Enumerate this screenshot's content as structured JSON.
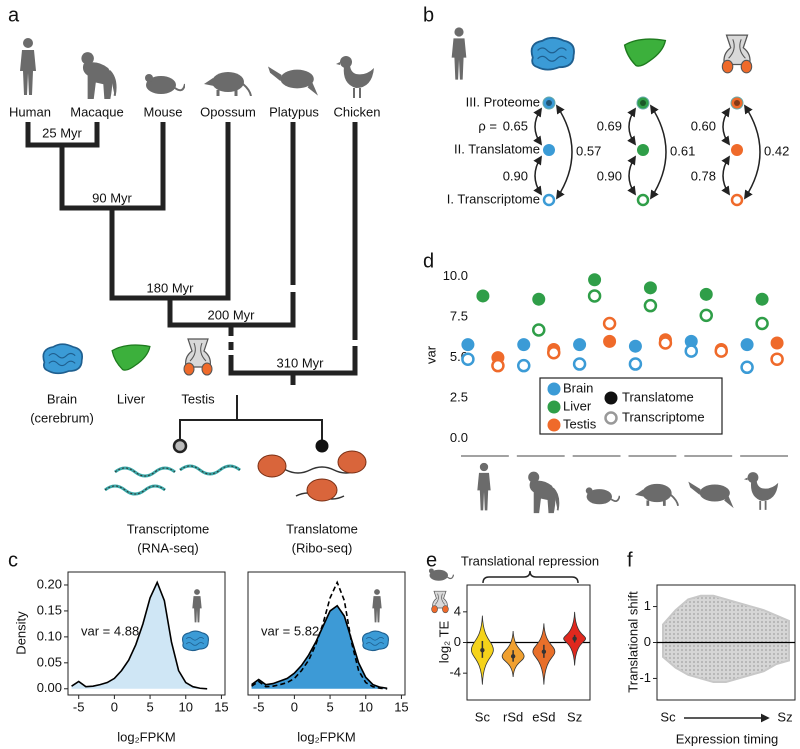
{
  "panel_labels": [
    "a",
    "b",
    "c",
    "d",
    "e",
    "f"
  ],
  "tree": {
    "species": [
      "Human",
      "Macaque",
      "Mouse",
      "Opossum",
      "Platypus",
      "Chicken"
    ],
    "divergences": [
      "25 Myr",
      "90 Myr",
      "180 Myr",
      "200 Myr",
      "310 Myr"
    ],
    "tissues": [
      {
        "name": "Brain",
        "note": "(cerebrum)"
      },
      {
        "name": "Liver"
      },
      {
        "name": "Testis"
      }
    ],
    "methods": [
      {
        "name": "Transcriptome",
        "assay": "(RNA-seq)"
      },
      {
        "name": "Translatome",
        "assay": "(Ribo-seq)"
      }
    ]
  },
  "correlations": {
    "levels": [
      "III. Proteome",
      "II. Translatome",
      "I. Transcriptome"
    ],
    "rho_prefix": "ρ =",
    "tissues": [
      {
        "color": "#3b9bd6",
        "proteome_translatome": "0.65",
        "translatome_transcriptome": "0.90",
        "proteome_transcriptome": "0.57"
      },
      {
        "color": "#2f9e48",
        "proteome_translatome": "0.69",
        "translatome_transcriptome": "0.90",
        "proteome_transcriptome": "0.61"
      },
      {
        "color": "#ef6a2a",
        "proteome_translatome": "0.60",
        "translatome_transcriptome": "0.78",
        "proteome_transcriptome": "0.42"
      }
    ]
  },
  "chart_data": [
    {
      "type": "dot",
      "ylabel": "var",
      "categories": [
        null,
        null,
        null,
        null,
        null,
        null
      ],
      "ylim": [
        -0.7,
        10.4
      ],
      "yticks": [
        {
          "value": 0,
          "label": "0.0"
        },
        2.5,
        {
          "value": 5,
          "label": "5.0"
        },
        7.5,
        {
          "value": 10,
          "label": "10.0"
        }
      ],
      "tissues": [
        {
          "name": "Brain",
          "color": "#3b9bd6",
          "translatome": [
            5.8,
            5.8,
            5.8,
            5.7,
            6.0,
            5.8
          ],
          "transcriptome": [
            4.9,
            4.5,
            4.6,
            4.6,
            5.4,
            4.4
          ]
        },
        {
          "name": "Liver",
          "color": "#2f9e48",
          "translatome": [
            8.8,
            8.6,
            9.8,
            9.3,
            8.9,
            8.6
          ],
          "transcriptome": [
            null,
            6.7,
            8.8,
            8.2,
            7.6,
            7.1
          ]
        },
        {
          "name": "Testis",
          "color": "#ef6a2a",
          "translatome": [
            5.0,
            5.5,
            6.0,
            6.1,
            5.5,
            5.9
          ],
          "transcriptome": [
            4.5,
            5.3,
            7.1,
            5.9,
            5.4,
            4.9
          ]
        }
      ],
      "legend_types": [
        "Translatome",
        "Transcriptome"
      ]
    },
    {
      "type": "density",
      "ylabel": "Density",
      "xlabel": "log₂FPKM",
      "annotation": "var =  4.88",
      "x": [
        -6,
        -5,
        -4,
        -3,
        -2,
        -1,
        0,
        1,
        2,
        3,
        4,
        5,
        6,
        7,
        8,
        9,
        10,
        11,
        12,
        13
      ],
      "series": [
        {
          "color": "#cfe6f5",
          "values": [
            0.005,
            0.014,
            0.004,
            0.005,
            0.008,
            0.012,
            0.02,
            0.035,
            0.055,
            0.085,
            0.125,
            0.175,
            0.205,
            0.17,
            0.09,
            0.035,
            0.012,
            0.004,
            0.001,
            0
          ]
        }
      ],
      "xlim": [
        -6.5,
        15.5
      ],
      "xticks": [
        -5,
        0,
        5,
        10,
        15
      ],
      "ylim": [
        -0.012,
        0.225
      ],
      "yticks": [
        {
          "value": 0,
          "label": "0.00"
        },
        0.05,
        {
          "value": 0.1,
          "label": "0.10"
        },
        0.15,
        {
          "value": 0.2,
          "label": "0.20"
        }
      ]
    },
    {
      "type": "density",
      "xlabel": "log₂FPKM",
      "annotation": "var =  5.82",
      "x": [
        -6,
        -5,
        -4,
        -3,
        -2,
        -1,
        0,
        1,
        2,
        3,
        4,
        5,
        6,
        7,
        8,
        9,
        10,
        11,
        12,
        13
      ],
      "series": [
        {
          "color": "#3d9ad6",
          "values": [
            0.008,
            0.018,
            0.008,
            0.01,
            0.015,
            0.02,
            0.03,
            0.045,
            0.065,
            0.09,
            0.12,
            0.15,
            0.16,
            0.14,
            0.095,
            0.05,
            0.022,
            0.008,
            0.003,
            0.001
          ]
        },
        {
          "color": "#000000",
          "dashed": true,
          "values": [
            0.005,
            0.014,
            0.004,
            0.005,
            0.008,
            0.012,
            0.02,
            0.035,
            0.055,
            0.085,
            0.125,
            0.175,
            0.205,
            0.17,
            0.09,
            0.035,
            0.012,
            0.004,
            0.001,
            0
          ]
        }
      ],
      "xlim": [
        -6.5,
        15.5
      ],
      "xticks": [
        -5,
        0,
        5,
        10,
        15
      ],
      "ylim": [
        -0.012,
        0.225
      ]
    },
    {
      "type": "violin",
      "title": "Translational repression",
      "ylabel": "log₂ TE",
      "categories": [
        "Sc",
        "rSd",
        "eSd",
        "Sz"
      ],
      "colors": [
        "#f5d31a",
        "#f0a030",
        "#e86f2a",
        "#e0281e"
      ],
      "values": [
        -1.0,
        -1.8,
        -1.2,
        0.5
      ],
      "q1": [
        -2.0,
        -2.5,
        -2.0,
        0.0
      ],
      "q3": [
        0.2,
        -1.0,
        -0.3,
        1.0
      ],
      "min": [
        -5.5,
        -4.5,
        -5.5,
        -3.0
      ],
      "max": [
        3.5,
        1.5,
        2.5,
        4.0
      ],
      "ylim": [
        -7.5,
        7.5
      ],
      "yticks": [
        -4,
        0,
        4
      ],
      "hline": 0
    },
    {
      "type": "band",
      "ylabel": "Translational shift",
      "xlabel": "Expression timing",
      "x_start": "Sc",
      "x_end": "Sz",
      "x": [
        0,
        1,
        2,
        3,
        4,
        5,
        6,
        7,
        8,
        9,
        10
      ],
      "upper": [
        0.5,
        0.9,
        1.2,
        1.3,
        1.3,
        1.2,
        1.1,
        1.0,
        0.9,
        0.75,
        0.6
      ],
      "lower": [
        -0.4,
        -0.7,
        -0.9,
        -1.0,
        -1.1,
        -1.1,
        -1.0,
        -0.9,
        -0.8,
        -0.6,
        -0.5
      ],
      "xlim": [
        0,
        10
      ],
      "ylim": [
        -1.6,
        1.6
      ],
      "yticks": [
        -1,
        0,
        1
      ],
      "hline": 0
    }
  ]
}
